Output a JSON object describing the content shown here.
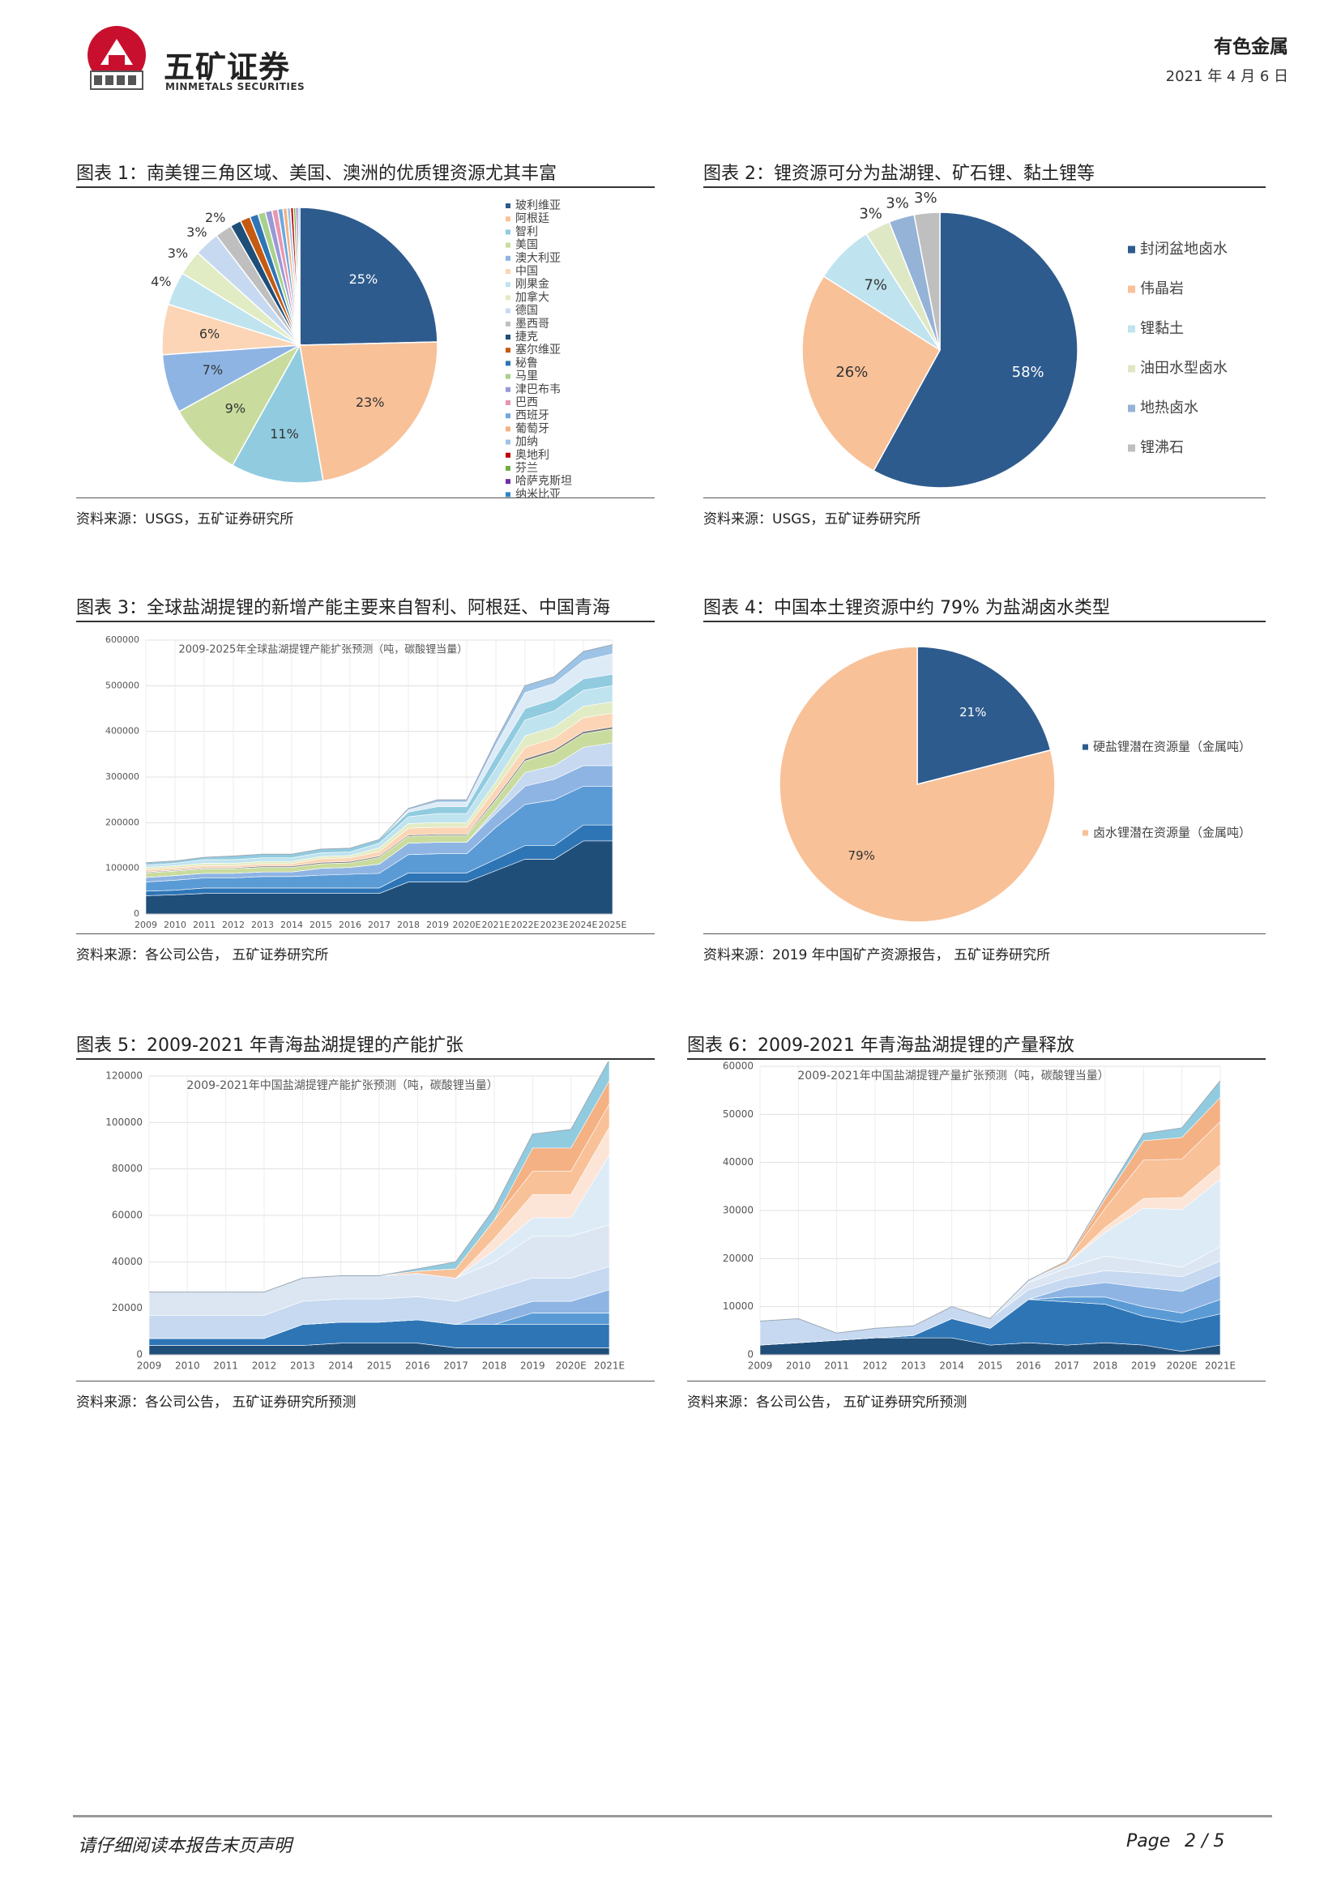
{
  "header": {
    "brand_cn": "五矿证券",
    "brand_en": "MINMETALS SECURITIES",
    "category": "有色金属",
    "date": "2021 年 4 月 6 日"
  },
  "colors": {
    "navy": "#2e5b8e",
    "orange": "#f8c198",
    "blue": "#91cbdf",
    "green": "#c9dc9e"
  },
  "fig1": {
    "title": "图表 1：南美锂三角区域、美国、澳洲的优质锂资源尤其丰富",
    "source": "资料来源：USGS，五矿证券研究所",
    "chart_data": {
      "type": "pie",
      "slices": [
        {
          "name": "玻利维亚",
          "value": 25,
          "label": "25%",
          "color": "#2e5b8e"
        },
        {
          "name": "阿根廷",
          "value": 23,
          "label": "23%",
          "color": "#f8c198"
        },
        {
          "name": "智利",
          "value": 11,
          "label": "11%",
          "color": "#91cbdf"
        },
        {
          "name": "美国",
          "value": 9,
          "label": "9%",
          "color": "#c9dc9e"
        },
        {
          "name": "澳大利亚",
          "value": 7,
          "label": "7%",
          "color": "#8eb4e3"
        },
        {
          "name": "中国",
          "value": 6,
          "label": "6%",
          "color": "#fbd5b5"
        },
        {
          "name": "刚果金",
          "value": 4,
          "label": "4%",
          "color": "#bfe3ef"
        },
        {
          "name": "加拿大",
          "value": 3,
          "label": "3%",
          "color": "#e2ecc4"
        },
        {
          "name": "德国",
          "value": 3,
          "label": "3%",
          "color": "#c6d9f1"
        },
        {
          "name": "墨西哥",
          "value": 2,
          "label": "2%",
          "color": "#bfbfbf"
        },
        {
          "name": "捷克",
          "value": 1.3,
          "label": "",
          "color": "#1f4e79"
        },
        {
          "name": "塞尔维亚",
          "value": 1.2,
          "label": "",
          "color": "#c55a11"
        },
        {
          "name": "秘鲁",
          "value": 1,
          "label": "",
          "color": "#2e75b6"
        },
        {
          "name": "马里",
          "value": 0.9,
          "label": "",
          "color": "#a9d18e"
        },
        {
          "name": "津巴布韦",
          "value": 0.8,
          "label": "",
          "color": "#9999d6"
        },
        {
          "name": "巴西",
          "value": 0.7,
          "label": "",
          "color": "#e896b0"
        },
        {
          "name": "西班牙",
          "value": 0.6,
          "label": "",
          "color": "#6fa8dc"
        },
        {
          "name": "葡萄牙",
          "value": 0.5,
          "label": "",
          "color": "#f4b183"
        },
        {
          "name": "加纳",
          "value": 0.4,
          "label": "",
          "color": "#9dc3e6"
        },
        {
          "name": "奥地利",
          "value": 0.35,
          "label": "",
          "color": "#c00000"
        },
        {
          "name": "芬兰",
          "value": 0.3,
          "label": "",
          "color": "#70ad47"
        },
        {
          "name": "哈萨克斯坦",
          "value": 0.25,
          "label": "",
          "color": "#7030a0"
        },
        {
          "name": "纳米比亚",
          "value": 0.2,
          "label": "",
          "color": "#2e86c1"
        }
      ]
    }
  },
  "fig2": {
    "title": "图表 2：锂资源可分为盐湖锂、矿石锂、黏土锂等",
    "source": "资料来源：USGS，五矿证券研究所",
    "chart_data": {
      "type": "pie",
      "slices": [
        {
          "name": "封闭盆地卤水",
          "value": 58,
          "label": "58%",
          "color": "#2e5b8e"
        },
        {
          "name": "伟晶岩",
          "value": 26,
          "label": "26%",
          "color": "#f8c198"
        },
        {
          "name": "锂黏土",
          "value": 7,
          "label": "7%",
          "color": "#bfe3ef"
        },
        {
          "name": "油田水型卤水",
          "value": 3,
          "label": "3%",
          "color": "#dfe8c5"
        },
        {
          "name": "地热卤水",
          "value": 3,
          "label": "3%",
          "color": "#95b3d7"
        },
        {
          "name": "锂沸石",
          "value": 3,
          "label": "3%",
          "color": "#bfbfbf"
        }
      ]
    }
  },
  "fig3": {
    "title": "图表 3：全球盐湖提锂的新增产能主要来自智利、阿根廷、中国青海",
    "source": "资料来源：各公司公告，  五矿证券研究所",
    "chart_data": {
      "type": "area",
      "title": "2009-2025年全球盐湖提锂产能扩张预测（吨，碳酸锂当量）",
      "x": [
        "2009",
        "2010",
        "2011",
        "2012",
        "2013",
        "2014",
        "2015",
        "2016",
        "2017",
        "2018",
        "2019",
        "2020E",
        "2021E",
        "2022E",
        "2023E",
        "2024E",
        "2025E"
      ],
      "ylim": [
        0,
        600000
      ],
      "yticks": [
        0,
        100000,
        200000,
        300000,
        400000,
        500000,
        600000
      ],
      "series": [
        {
          "color": "#1f4e79",
          "values": [
            40000,
            42000,
            45000,
            45000,
            45000,
            45000,
            45000,
            45000,
            45000,
            70000,
            70000,
            70000,
            95000,
            120000,
            120000,
            160000,
            160000
          ]
        },
        {
          "color": "#2e75b6",
          "values": [
            10000,
            10000,
            12000,
            12000,
            12000,
            12000,
            12000,
            12000,
            12000,
            20000,
            20000,
            20000,
            25000,
            30000,
            30000,
            35000,
            35000
          ]
        },
        {
          "color": "#5b9bd5",
          "values": [
            20000,
            22000,
            22000,
            22000,
            25000,
            25000,
            28000,
            30000,
            32000,
            40000,
            42000,
            42000,
            70000,
            90000,
            100000,
            85000,
            85000
          ]
        },
        {
          "color": "#8eb4e3",
          "values": [
            10000,
            10000,
            10000,
            10000,
            10000,
            10000,
            15000,
            15000,
            20000,
            25000,
            25000,
            25000,
            30000,
            40000,
            45000,
            45000,
            45000
          ]
        },
        {
          "color": "#c6d9f1",
          "values": [
            0,
            0,
            0,
            0,
            0,
            0,
            0,
            0,
            0,
            0,
            0,
            0,
            10000,
            30000,
            30000,
            40000,
            50000
          ]
        },
        {
          "color": "#c9dc9e",
          "values": [
            10000,
            10000,
            10000,
            10000,
            10000,
            10000,
            10000,
            10000,
            15000,
            15000,
            15000,
            15000,
            20000,
            25000,
            30000,
            30000,
            30000
          ]
        },
        {
          "color": "#7f7f7f",
          "values": [
            2000,
            2000,
            2000,
            2000,
            3000,
            3000,
            3000,
            3000,
            3000,
            3000,
            3000,
            3000,
            5000,
            5000,
            5000,
            5000,
            5000
          ]
        },
        {
          "color": "#fbd5b5",
          "values": [
            5000,
            5000,
            5000,
            5000,
            5000,
            5000,
            8000,
            8000,
            10000,
            15000,
            15000,
            15000,
            20000,
            25000,
            25000,
            30000,
            30000
          ]
        },
        {
          "color": "#e2ecc4",
          "values": [
            5000,
            5000,
            5000,
            5000,
            5000,
            5000,
            5000,
            5000,
            8000,
            10000,
            10000,
            10000,
            15000,
            25000,
            25000,
            25000,
            25000
          ]
        },
        {
          "color": "#bfe3ef",
          "values": [
            5000,
            5000,
            8000,
            8000,
            8000,
            8000,
            8000,
            8000,
            10000,
            15000,
            20000,
            20000,
            30000,
            35000,
            35000,
            35000,
            35000
          ]
        },
        {
          "color": "#91cbdf",
          "values": [
            5000,
            5000,
            5000,
            8000,
            8000,
            8000,
            8000,
            8000,
            8000,
            10000,
            15000,
            15000,
            25000,
            25000,
            25000,
            25000,
            25000
          ]
        },
        {
          "color": "#ddebf7",
          "values": [
            0,
            0,
            0,
            0,
            0,
            0,
            0,
            0,
            0,
            5000,
            10000,
            10000,
            25000,
            35000,
            35000,
            40000,
            45000
          ]
        },
        {
          "color": "#9dc3e6",
          "values": [
            0,
            0,
            0,
            0,
            0,
            0,
            0,
            0,
            0,
            3000,
            5000,
            5000,
            10000,
            15000,
            15000,
            20000,
            20000
          ]
        }
      ]
    }
  },
  "fig4": {
    "title": "图表 4：中国本土锂资源中约 79% 为盐湖卤水类型",
    "source": "资料来源：2019 年中国矿产资源报告，  五矿证券研究所",
    "chart_data": {
      "type": "pie",
      "slices": [
        {
          "name": "硬盐锂潜在资源量（金属吨）",
          "value": 21,
          "label": "21%",
          "color": "#2e5b8e"
        },
        {
          "name": "卤水锂潜在资源量（金属吨）",
          "value": 79,
          "label": "79%",
          "color": "#f8c198"
        }
      ]
    }
  },
  "fig5": {
    "title": "图表 5：2009-2021 年青海盐湖提锂的产能扩张",
    "source": "资料来源：各公司公告，  五矿证券研究所预测",
    "chart_data": {
      "type": "area",
      "title": "2009-2021年中国盐湖提锂产能扩张预测（吨，碳酸锂当量）",
      "x": [
        "2009",
        "2010",
        "2011",
        "2012",
        "2013",
        "2014",
        "2015",
        "2016",
        "2017",
        "2018",
        "2019",
        "2020E",
        "2021E"
      ],
      "ylim": [
        0,
        120000
      ],
      "yticks": [
        0,
        20000,
        40000,
        60000,
        80000,
        100000,
        120000
      ],
      "series": [
        {
          "color": "#1f4e79",
          "values": [
            4000,
            4000,
            4000,
            4000,
            4000,
            5000,
            5000,
            5000,
            3000,
            3000,
            3000,
            3000,
            3000
          ]
        },
        {
          "color": "#2e75b6",
          "values": [
            3000,
            3000,
            3000,
            3000,
            9000,
            9000,
            9000,
            10000,
            10000,
            10000,
            10000,
            10000,
            10000
          ]
        },
        {
          "color": "#5b9bd5",
          "values": [
            0,
            0,
            0,
            0,
            0,
            0,
            0,
            0,
            0,
            0,
            5000,
            5000,
            5000
          ]
        },
        {
          "color": "#8eb4e3",
          "values": [
            0,
            0,
            0,
            0,
            0,
            0,
            0,
            0,
            0,
            5000,
            5000,
            5000,
            10000
          ]
        },
        {
          "color": "#c6d9f1",
          "values": [
            10000,
            10000,
            10000,
            10000,
            10000,
            10000,
            10000,
            10000,
            10000,
            10000,
            10000,
            10000,
            10000
          ]
        },
        {
          "color": "#dce6f2",
          "values": [
            10000,
            10000,
            10000,
            10000,
            10000,
            10000,
            10000,
            10000,
            10000,
            12000,
            18000,
            18000,
            18000
          ]
        },
        {
          "color": "#ddebf7",
          "values": [
            0,
            0,
            0,
            0,
            0,
            0,
            0,
            0,
            0,
            5000,
            8000,
            8000,
            30000
          ]
        },
        {
          "color": "#fce4d6",
          "values": [
            0,
            0,
            0,
            0,
            0,
            0,
            0,
            0,
            0,
            5000,
            10000,
            10000,
            12000
          ]
        },
        {
          "color": "#f8c198",
          "values": [
            0,
            0,
            0,
            0,
            0,
            0,
            0,
            1000,
            4000,
            8000,
            10000,
            10000,
            10000
          ]
        },
        {
          "color": "#f4b183",
          "values": [
            0,
            0,
            0,
            0,
            0,
            0,
            0,
            0,
            0,
            0,
            10000,
            10000,
            10000
          ]
        },
        {
          "color": "#91cbdf",
          "values": [
            0,
            0,
            0,
            0,
            0,
            0,
            0,
            1000,
            3000,
            5000,
            6000,
            8000,
            9000
          ]
        }
      ]
    }
  },
  "fig6": {
    "title": "图表 6：2009-2021 年青海盐湖提锂的产量释放",
    "source": "资料来源：各公司公告，  五矿证券研究所预测",
    "chart_data": {
      "type": "area",
      "title": "2009-2021年中国盐湖提锂产量扩张预测（吨，碳酸锂当量）",
      "x": [
        "2009",
        "2010",
        "2011",
        "2012",
        "2013",
        "2014",
        "2015",
        "2016",
        "2017",
        "2018",
        "2019",
        "2020E",
        "2021E"
      ],
      "ylim": [
        0,
        60000
      ],
      "yticks": [
        0,
        10000,
        20000,
        30000,
        40000,
        50000,
        60000
      ],
      "series": [
        {
          "color": "#1f4e79",
          "values": [
            2000,
            2500,
            3000,
            3500,
            3500,
            3500,
            2000,
            2500,
            2000,
            2500,
            2000,
            700,
            2000
          ]
        },
        {
          "color": "#2e75b6",
          "values": [
            0,
            0,
            0,
            0,
            500,
            4000,
            3500,
            9000,
            9000,
            8000,
            6000,
            6000,
            6500
          ]
        },
        {
          "color": "#5b9bd5",
          "values": [
            0,
            0,
            0,
            0,
            0,
            0,
            0,
            0,
            1000,
            1500,
            2000,
            2000,
            3000
          ]
        },
        {
          "color": "#8eb4e3",
          "values": [
            0,
            0,
            0,
            0,
            0,
            0,
            0,
            0,
            2000,
            3000,
            4000,
            4500,
            5000
          ]
        },
        {
          "color": "#c6d9f1",
          "values": [
            5000,
            5000,
            1500,
            2000,
            2000,
            2500,
            2000,
            2000,
            2000,
            2500,
            3000,
            3000,
            3000
          ]
        },
        {
          "color": "#dce6f2",
          "values": [
            0,
            0,
            0,
            0,
            0,
            0,
            0,
            1500,
            2000,
            3000,
            2500,
            2000,
            3000
          ]
        },
        {
          "color": "#ddebf7",
          "values": [
            0,
            0,
            0,
            0,
            0,
            0,
            0,
            500,
            1000,
            5000,
            11000,
            12000,
            14000
          ]
        },
        {
          "color": "#fce4d6",
          "values": [
            0,
            0,
            0,
            0,
            0,
            0,
            0,
            0,
            0,
            1000,
            2000,
            2500,
            3000
          ]
        },
        {
          "color": "#f8c198",
          "values": [
            0,
            0,
            0,
            0,
            0,
            0,
            0,
            0,
            500,
            4000,
            8000,
            8000,
            9000
          ]
        },
        {
          "color": "#f4b183",
          "values": [
            0,
            0,
            0,
            0,
            0,
            0,
            0,
            0,
            0,
            2000,
            4000,
            4500,
            5000
          ]
        },
        {
          "color": "#91cbdf",
          "values": [
            0,
            0,
            0,
            0,
            0,
            0,
            0,
            0,
            0,
            500,
            1500,
            2000,
            3500
          ]
        }
      ]
    }
  },
  "footer": {
    "note": "请仔细阅读本报告末页声明",
    "page_label": "Page",
    "page_num": "2 / 5"
  }
}
